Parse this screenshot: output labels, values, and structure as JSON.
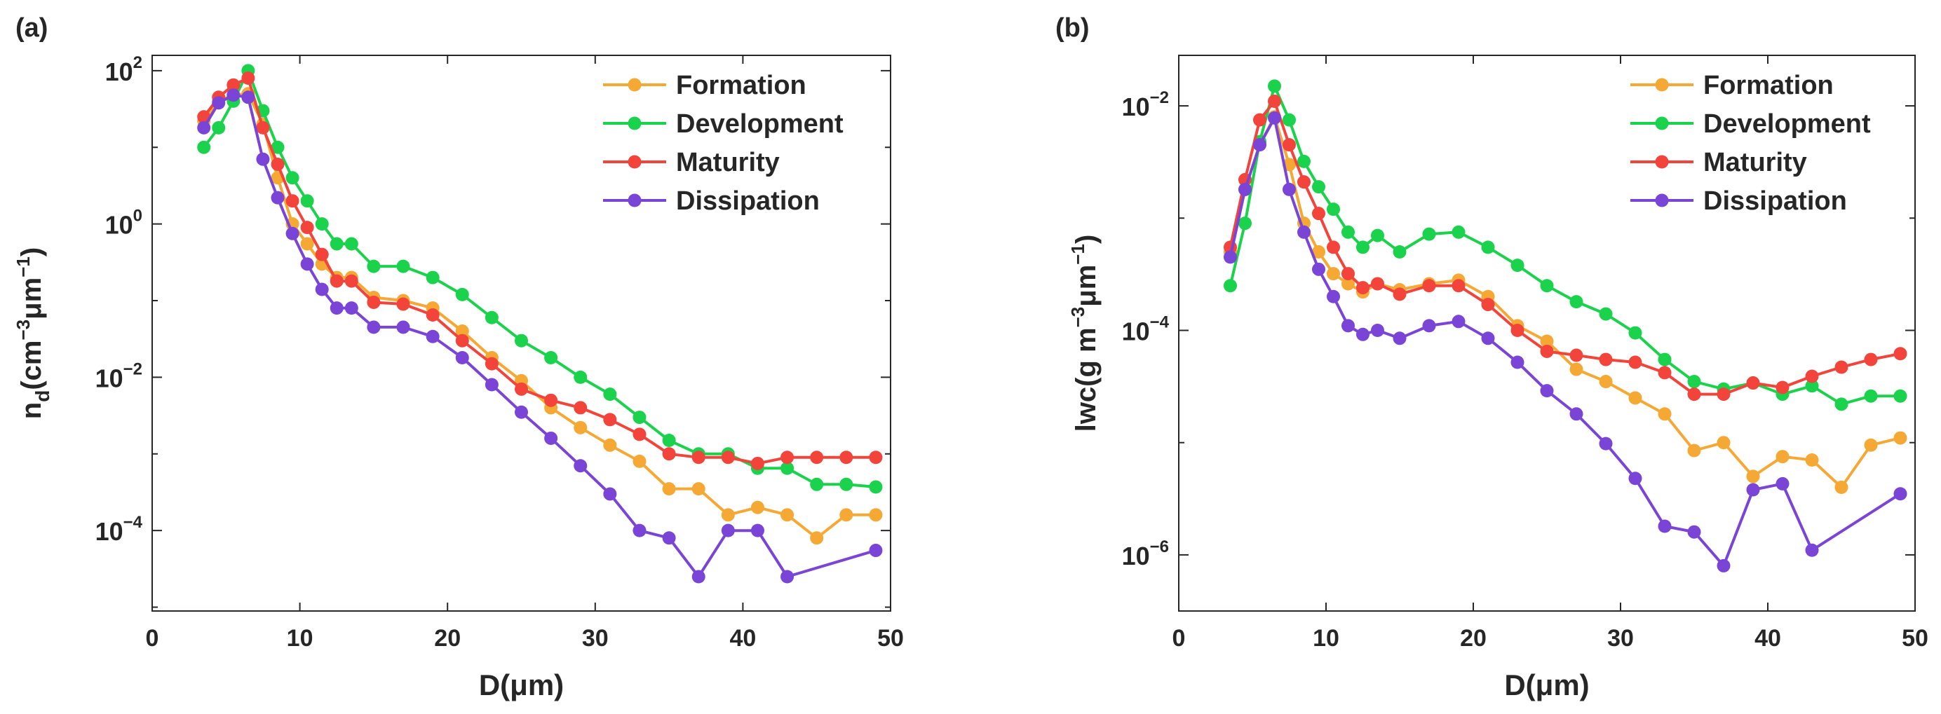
{
  "colors": {
    "Formation": "#F6A834",
    "Development": "#1BD24C",
    "Maturity": "#F2443A",
    "Dissipation": "#7A45D6",
    "axis": "#262626"
  },
  "chart_data": [
    {
      "type": "line",
      "panel_label": "(a)",
      "yscale": "log",
      "xlim": [
        0,
        50
      ],
      "ylim_log10": [
        -5.05,
        2.2
      ],
      "xticks": [
        0,
        10,
        20,
        30,
        40,
        50
      ],
      "xtick_labels": [
        "0",
        "10",
        "20",
        "30",
        "40",
        "50"
      ],
      "ytick_exponents": [
        -4,
        -2,
        0,
        2
      ],
      "ytick_base": "10",
      "ytick_exps": [
        "−4",
        "−2",
        "0",
        "2"
      ],
      "xlabel": "D(μm)",
      "ylabel_parts": {
        "a": "n",
        "sub": "d",
        "b": "(cm",
        "sup1": "−3",
        "c": "μm",
        "sup2": "−1",
        "d": ")"
      },
      "legend": {
        "location": "top-right",
        "entries": [
          "Formation",
          "Development",
          "Maturity",
          "Dissipation"
        ]
      },
      "series": [
        {
          "name": "Formation",
          "x": [
            3.5,
            4.5,
            5.5,
            6.5,
            7.5,
            8.5,
            9.5,
            10.5,
            11.5,
            12.5,
            13.5,
            15,
            17,
            19,
            21,
            23,
            25,
            27,
            29,
            31,
            33,
            35,
            37,
            39,
            41,
            43,
            45,
            47,
            49
          ],
          "y": [
            22,
            40,
            48,
            50,
            20,
            4,
            1.0,
            0.55,
            0.3,
            0.2,
            0.2,
            0.11,
            0.1,
            0.08,
            0.04,
            0.018,
            0.009,
            0.004,
            0.0022,
            0.0013,
            0.0008,
            0.00035,
            0.00035,
            0.00016,
            0.0002,
            0.00016,
            8e-05,
            0.00016,
            0.00016
          ]
        },
        {
          "name": "Development",
          "x": [
            3.5,
            4.5,
            5.5,
            6.5,
            7.5,
            8.5,
            9.5,
            10.5,
            11.5,
            12.5,
            13.5,
            15,
            17,
            19,
            21,
            23,
            25,
            27,
            29,
            31,
            33,
            35,
            37,
            39,
            41,
            43,
            45,
            47,
            49
          ],
          "y": [
            10,
            18,
            40,
            100,
            30,
            10,
            4,
            2,
            1,
            0.55,
            0.55,
            0.28,
            0.28,
            0.2,
            0.12,
            0.06,
            0.03,
            0.018,
            0.01,
            0.006,
            0.003,
            0.0015,
            0.001,
            0.001,
            0.00065,
            0.00065,
            0.0004,
            0.0004,
            0.00037
          ]
        },
        {
          "name": "Maturity",
          "x": [
            3.5,
            4.5,
            5.5,
            6.5,
            7.5,
            8.5,
            9.5,
            10.5,
            11.5,
            12.5,
            13.5,
            15,
            17,
            19,
            21,
            23,
            25,
            27,
            29,
            31,
            33,
            35,
            37,
            39,
            41,
            43,
            45,
            47,
            49
          ],
          "y": [
            25,
            45,
            65,
            80,
            18,
            6,
            2,
            0.9,
            0.4,
            0.18,
            0.18,
            0.095,
            0.09,
            0.065,
            0.03,
            0.015,
            0.007,
            0.005,
            0.004,
            0.0028,
            0.0018,
            0.001,
            0.0009,
            0.0009,
            0.00075,
            0.0009,
            0.0009,
            0.0009,
            0.0009
          ]
        },
        {
          "name": "Dissipation",
          "x": [
            3.5,
            4.5,
            5.5,
            6.5,
            7.5,
            8.5,
            9.5,
            10.5,
            11.5,
            12.5,
            13.5,
            15,
            17,
            19,
            21,
            23,
            25,
            27,
            29,
            31,
            33,
            35,
            37,
            39,
            41,
            43,
            49
          ],
          "y": [
            18,
            38,
            48,
            45,
            7,
            2.2,
            0.75,
            0.3,
            0.14,
            0.08,
            0.08,
            0.045,
            0.045,
            0.034,
            0.018,
            0.008,
            0.0035,
            0.0016,
            0.0007,
            0.0003,
            0.0001,
            8e-05,
            2.5e-05,
            0.0001,
            0.0001,
            2.5e-05,
            5.5e-05
          ]
        }
      ]
    },
    {
      "type": "line",
      "panel_label": "(b)",
      "yscale": "log",
      "xlim": [
        0,
        50
      ],
      "ylim_log10": [
        -6.5,
        -1.55
      ],
      "xticks": [
        0,
        10,
        20,
        30,
        40,
        50
      ],
      "xtick_labels": [
        "0",
        "10",
        "20",
        "30",
        "40",
        "50"
      ],
      "ytick_exponents": [
        -6,
        -4,
        -2
      ],
      "ytick_base": "10",
      "ytick_exps": [
        "−6",
        "−4",
        "−2"
      ],
      "xlabel": "D(μm)",
      "ylabel_parts": {
        "a": "lwc(g m",
        "sup1": "−3",
        "c": "μm",
        "sup2": "−1",
        "d": ")"
      },
      "legend": {
        "location": "top-right",
        "entries": [
          "Formation",
          "Development",
          "Maturity",
          "Dissipation"
        ]
      },
      "series": [
        {
          "name": "Formation",
          "x": [
            3.5,
            4.5,
            5.5,
            6.5,
            7.5,
            8.5,
            9.5,
            10.5,
            11.5,
            12.5,
            13.5,
            15,
            17,
            19,
            21,
            23,
            25,
            27,
            29,
            31,
            33,
            35,
            37,
            39,
            41,
            43,
            45,
            47,
            49
          ],
          "y": [
            0.0005,
            0.0018,
            0.0045,
            0.008,
            0.003,
            0.0009,
            0.0005,
            0.00032,
            0.00026,
            0.00022,
            0.00026,
            0.00023,
            0.00026,
            0.00028,
            0.0002,
            0.00011,
            8e-05,
            4.5e-05,
            3.5e-05,
            2.5e-05,
            1.8e-05,
            8.5e-06,
            1e-05,
            5e-06,
            7.5e-06,
            7e-06,
            4e-06,
            9.5e-06,
            1.1e-05
          ]
        },
        {
          "name": "Development",
          "x": [
            3.5,
            4.5,
            5.5,
            6.5,
            7.5,
            8.5,
            9.5,
            10.5,
            11.5,
            12.5,
            13.5,
            15,
            17,
            19,
            21,
            23,
            25,
            27,
            29,
            31,
            33,
            35,
            37,
            39,
            41,
            43,
            45,
            47,
            49
          ],
          "y": [
            0.00025,
            0.0009,
            0.0048,
            0.015,
            0.0075,
            0.0032,
            0.0019,
            0.0012,
            0.00075,
            0.00055,
            0.0007,
            0.0005,
            0.00072,
            0.00075,
            0.00055,
            0.00038,
            0.00025,
            0.00018,
            0.00014,
            9.5e-05,
            5.5e-05,
            3.5e-05,
            3e-05,
            3.4e-05,
            2.7e-05,
            3.2e-05,
            2.2e-05,
            2.6e-05,
            2.6e-05
          ]
        },
        {
          "name": "Maturity",
          "x": [
            3.5,
            4.5,
            5.5,
            6.5,
            7.5,
            8.5,
            9.5,
            10.5,
            11.5,
            12.5,
            13.5,
            15,
            17,
            19,
            21,
            23,
            25,
            27,
            29,
            31,
            33,
            35,
            37,
            39,
            41,
            43,
            45,
            47,
            49
          ],
          "y": [
            0.00055,
            0.0022,
            0.0075,
            0.011,
            0.0045,
            0.0021,
            0.0011,
            0.00055,
            0.00032,
            0.00024,
            0.00026,
            0.00021,
            0.00025,
            0.00025,
            0.00017,
            0.0001,
            6.5e-05,
            6e-05,
            5.5e-05,
            5.2e-05,
            4.2e-05,
            2.7e-05,
            2.7e-05,
            3.4e-05,
            3.1e-05,
            3.9e-05,
            4.7e-05,
            5.5e-05,
            6.2e-05
          ]
        },
        {
          "name": "Dissipation",
          "x": [
            3.5,
            4.5,
            5.5,
            6.5,
            7.5,
            8.5,
            9.5,
            10.5,
            11.5,
            12.5,
            13.5,
            15,
            17,
            19,
            21,
            23,
            25,
            27,
            29,
            31,
            33,
            35,
            37,
            39,
            41,
            43,
            49
          ],
          "y": [
            0.00045,
            0.0018,
            0.0045,
            0.0078,
            0.0018,
            0.00075,
            0.00035,
            0.0002,
            0.00011,
            9.2e-05,
            0.0001,
            8.5e-05,
            0.00011,
            0.00012,
            8.5e-05,
            5.2e-05,
            2.9e-05,
            1.8e-05,
            9.8e-06,
            4.8e-06,
            1.8e-06,
            1.6e-06,
            8e-07,
            3.8e-06,
            4.3e-06,
            1.1e-06,
            3.5e-06
          ]
        }
      ]
    }
  ]
}
